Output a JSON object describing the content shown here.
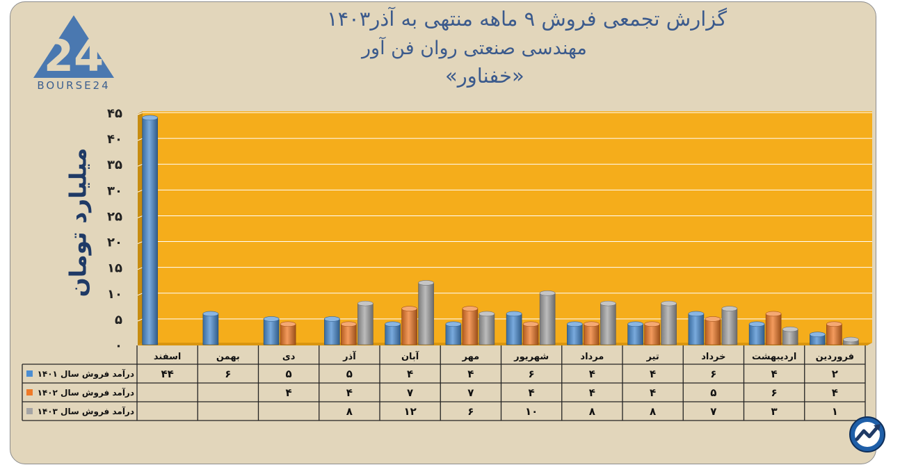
{
  "title_lines": [
    "گزارش تجمعی فروش ۹ ماهه منتهی به آذر۱۴۰۳",
    "مهندسی صنعتی روان فن آور",
    "«خفناور»"
  ],
  "logo": {
    "text": "BOURSE24",
    "mark": "24"
  },
  "colors": {
    "plot_bg": "#f5ad1b",
    "series": [
      "#4c8ed2",
      "#ef7a28",
      "#a5a5a5"
    ],
    "axis_title": "#1f3a66",
    "title": "#3b5a8c"
  },
  "chart_data": {
    "type": "bar",
    "ylabel": "میلیارد تومان",
    "ylim": [
      0,
      45
    ],
    "y_ticks": [
      0,
      5,
      10,
      15,
      20,
      25,
      30,
      35,
      40,
      45
    ],
    "y_tick_labels": [
      "۰",
      "۵",
      "۱۰",
      "۱۵",
      "۲۰",
      "۲۵",
      "۳۰",
      "۳۵",
      "۴۰",
      "۴۵"
    ],
    "categories": [
      "فروردین",
      "اردیبهشت",
      "خرداد",
      "تیر",
      "مرداد",
      "شهریور",
      "مهر",
      "آبان",
      "آذر",
      "دی",
      "بهمن",
      "اسفند"
    ],
    "grid": true,
    "legend": "data-table-left",
    "series": [
      {
        "name": "درآمد فروش سال ۱۴۰۱",
        "values": [
          2,
          4,
          6,
          4,
          4,
          6,
          4,
          4,
          5,
          5,
          6,
          44
        ],
        "labels": [
          "۲",
          "۴",
          "۶",
          "۴",
          "۴",
          "۶",
          "۴",
          "۴",
          "۵",
          "۵",
          "۶",
          "۴۴"
        ]
      },
      {
        "name": "درآمد فروش سال ۱۴۰۲",
        "values": [
          4,
          6,
          5,
          4,
          4,
          4,
          7,
          7,
          4,
          4,
          null,
          null
        ],
        "labels": [
          "۴",
          "۶",
          "۵",
          "۴",
          "۴",
          "۴",
          "۷",
          "۷",
          "۴",
          "۴",
          "",
          ""
        ]
      },
      {
        "name": "درآمد فروش سال ۱۴۰۳",
        "values": [
          1,
          3,
          7,
          8,
          8,
          10,
          6,
          12,
          8,
          null,
          null,
          null
        ],
        "labels": [
          "۱",
          "۳",
          "۷",
          "۸",
          "۸",
          "۱۰",
          "۶",
          "۱۲",
          "۸",
          "",
          "",
          ""
        ]
      }
    ]
  }
}
